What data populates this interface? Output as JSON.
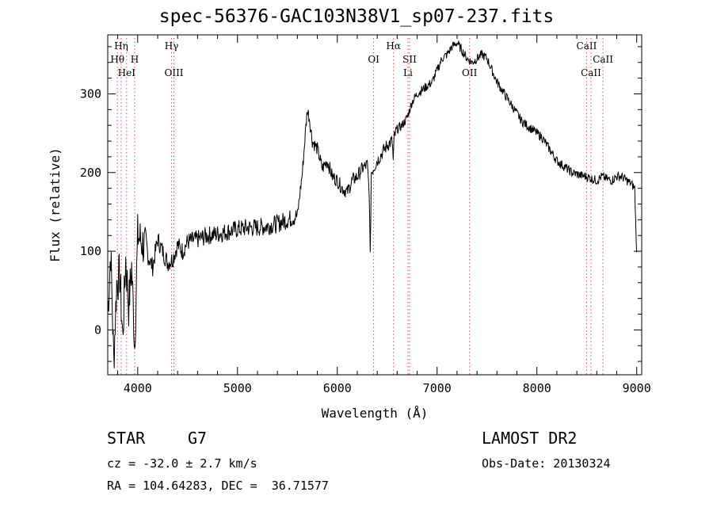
{
  "title": "spec-56376-GAC103N38V1_sp07-237.fits",
  "footer": {
    "class_label": "STAR",
    "subclass": "G7",
    "survey": "LAMOST DR2",
    "redshift": "cz = -32.0 ± 2.7 km/s",
    "obs_date": "Obs-Date: 20130324",
    "coords": "RA = 104.64283, DEC =  36.71577"
  },
  "chart_data": {
    "type": "line",
    "title": "spec-56376-GAC103N38V1_sp07-237.fits",
    "xlabel": "Wavelength (Å)",
    "ylabel": "Flux (relative)",
    "xlim": [
      3700,
      9050
    ],
    "ylim": [
      -57,
      375
    ],
    "xticks": [
      4000,
      5000,
      6000,
      7000,
      8000,
      9000
    ],
    "yticks": [
      0,
      100,
      200,
      300
    ],
    "grid": false,
    "line_color": "#000000",
    "marker_color": "#e8474a",
    "series": [
      {
        "values_x": [
          3700,
          3730,
          3760,
          3790,
          3820,
          3850,
          3880,
          3910,
          3940,
          3970,
          4000,
          4050,
          4100,
          4150,
          4200,
          4250,
          4300,
          4350,
          4400,
          4450,
          4500,
          4600,
          4700,
          4800,
          4900,
          5000,
          5100,
          5200,
          5300,
          5400,
          5500,
          5600,
          5650,
          5680,
          5700,
          5720,
          5750,
          5800,
          5850,
          5900,
          5950,
          6000,
          6050,
          6100,
          6150,
          6200,
          6250,
          6300,
          6320,
          6330,
          6340,
          6360,
          6400,
          6450,
          6500,
          6550,
          6560,
          6563,
          6570,
          6600,
          6650,
          6700,
          6750,
          6800,
          6850,
          6900,
          6950,
          7000,
          7050,
          7100,
          7150,
          7200,
          7250,
          7300,
          7350,
          7400,
          7450,
          7500,
          7550,
          7600,
          7650,
          7700,
          7750,
          7800,
          7850,
          7900,
          7950,
          8000,
          8050,
          8100,
          8150,
          8200,
          8250,
          8300,
          8350,
          8400,
          8450,
          8500,
          8550,
          8600,
          8650,
          8700,
          8750,
          8800,
          8850,
          8900,
          8950,
          8980,
          9000
        ],
        "values_y": [
          20,
          100,
          -40,
          60,
          70,
          -10,
          90,
          30,
          80,
          -20,
          120,
          110,
          95,
          80,
          115,
          100,
          85,
          90,
          108,
          100,
          112,
          115,
          120,
          122,
          125,
          128,
          130,
          130,
          132,
          135,
          140,
          145,
          200,
          250,
          280,
          270,
          240,
          230,
          205,
          215,
          195,
          190,
          180,
          175,
          190,
          195,
          205,
          210,
          175,
          90,
          200,
          205,
          215,
          225,
          235,
          240,
          215,
          220,
          245,
          255,
          260,
          270,
          290,
          300,
          305,
          310,
          315,
          330,
          345,
          350,
          360,
          365,
          355,
          345,
          340,
          345,
          350,
          345,
          330,
          315,
          305,
          295,
          285,
          275,
          265,
          260,
          255,
          250,
          245,
          235,
          225,
          215,
          210,
          205,
          200,
          198,
          196,
          195,
          192,
          190,
          195,
          192,
          190,
          195,
          195,
          190,
          185,
          180,
          95
        ]
      }
    ],
    "spectral_lines": [
      {
        "name": "Hη",
        "wavelength": 3835,
        "row": 1
      },
      {
        "name": "Hθ",
        "wavelength": 3797,
        "row": 2
      },
      {
        "name": "H",
        "wavelength": 3970,
        "row": 2
      },
      {
        "name": "HeI",
        "wavelength": 3889,
        "row": 3
      },
      {
        "name": "Hγ",
        "wavelength": 4340,
        "row": 1
      },
      {
        "name": "OIII",
        "wavelength": 4363,
        "row": 3
      },
      {
        "name": "OI",
        "wavelength": 6364,
        "row": 2
      },
      {
        "name": "Hα",
        "wavelength": 6563,
        "row": 1
      },
      {
        "name": "SII",
        "wavelength": 6724,
        "row": 2
      },
      {
        "name": "Li",
        "wavelength": 6708,
        "row": 3
      },
      {
        "name": "OII",
        "wavelength": 7325,
        "row": 3
      },
      {
        "name": "CaII",
        "wavelength": 8498,
        "row": 1
      },
      {
        "name": "CaII",
        "wavelength": 8662,
        "row": 2
      },
      {
        "name": "CaII",
        "wavelength": 8542,
        "row": 3
      }
    ]
  }
}
